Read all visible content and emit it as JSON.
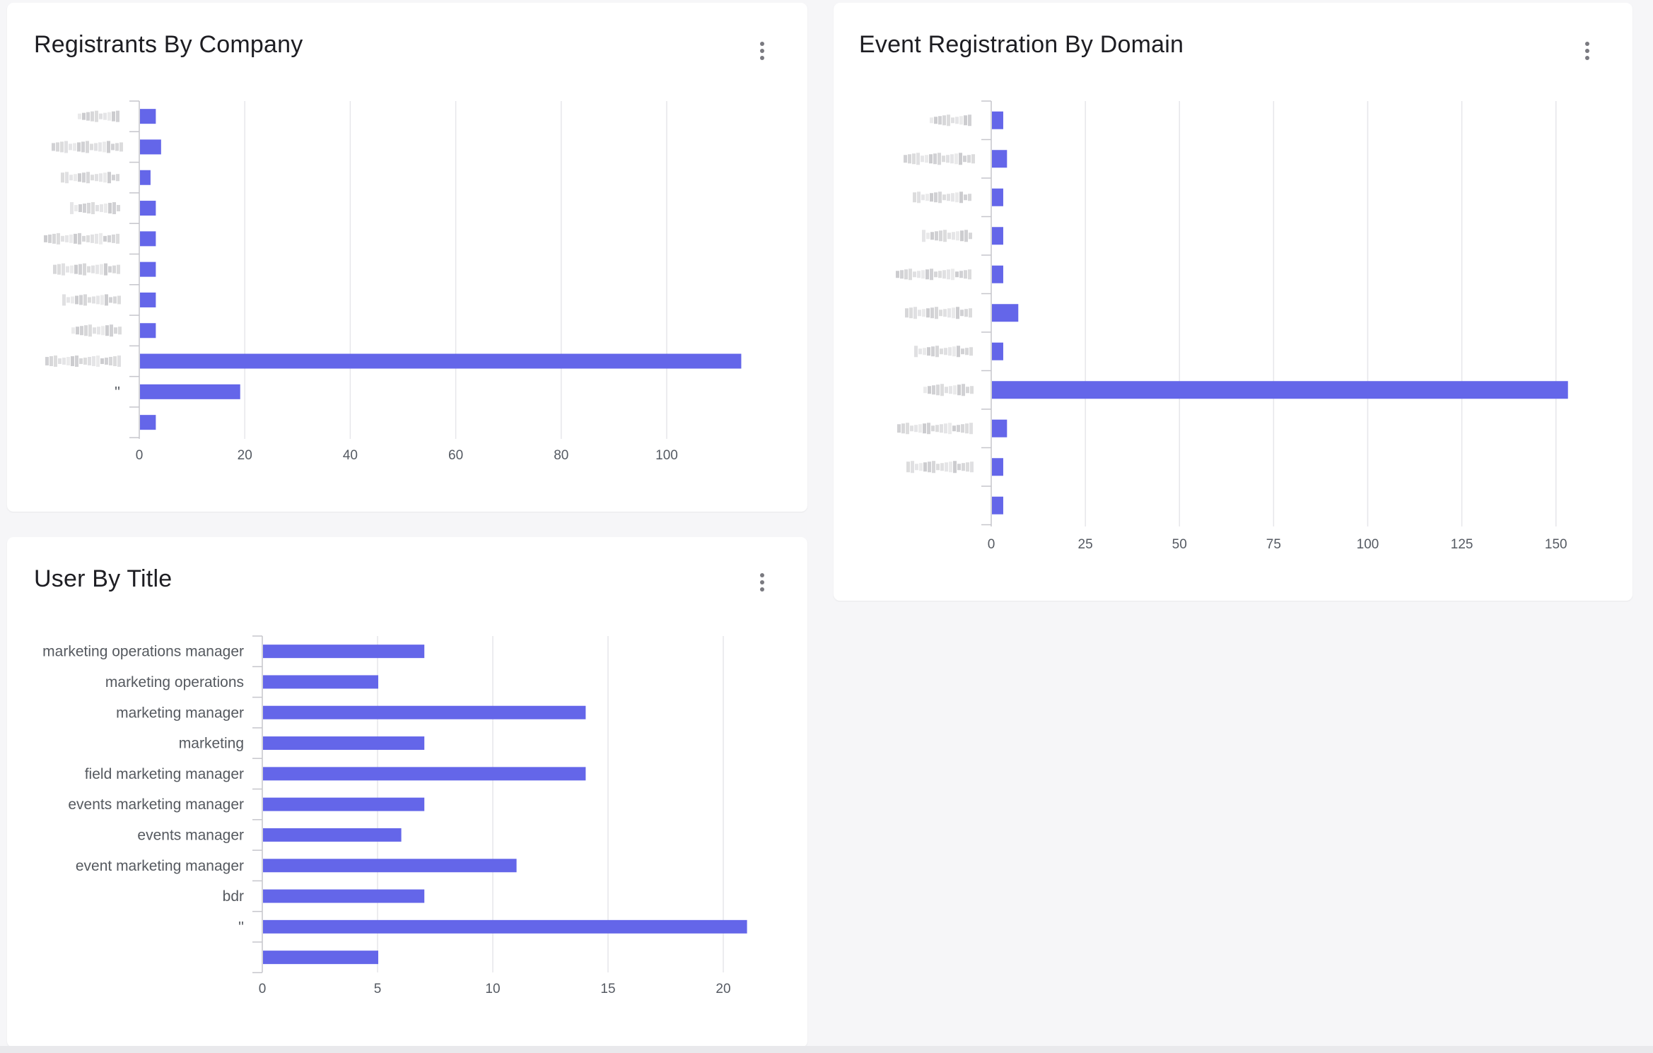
{
  "colors": {
    "bar": "#6466e9",
    "grid": "#e6e6ea",
    "axis": "#c6c6cc"
  },
  "cards": {
    "company": {
      "title": "Registrants By Company",
      "menu_icon": "kebab-menu-icon"
    },
    "domain": {
      "title": "Event Registration By Domain",
      "menu_icon": "kebab-menu-icon"
    },
    "title": {
      "title": "User By Title",
      "menu_icon": "kebab-menu-icon"
    }
  },
  "chart_data": [
    {
      "id": "company",
      "type": "bar",
      "orientation": "horizontal",
      "title": "Registrants By Company",
      "categories": [
        "",
        "",
        "",
        "",
        "",
        "",
        "",
        "",
        "",
        "''",
        ""
      ],
      "category_labels_obscured": true,
      "values": [
        3,
        4,
        2,
        3,
        3,
        3,
        3,
        3,
        114,
        19,
        3
      ],
      "xticks": [
        0,
        20,
        40,
        60,
        80,
        100
      ],
      "xlim": [
        0,
        114
      ],
      "grid": true
    },
    {
      "id": "domain",
      "type": "bar",
      "orientation": "horizontal",
      "title": "Event Registration By Domain",
      "categories": [
        "",
        "",
        "",
        "",
        "",
        "",
        "",
        "",
        "",
        "",
        ""
      ],
      "category_labels_obscured": true,
      "values": [
        3,
        4,
        3,
        3,
        3,
        7,
        3,
        153,
        4,
        3,
        3
      ],
      "xticks": [
        0,
        25,
        50,
        75,
        100,
        125,
        150
      ],
      "xlim": [
        0,
        153
      ],
      "grid": true
    },
    {
      "id": "title",
      "type": "bar",
      "orientation": "horizontal",
      "title": "User By Title",
      "categories": [
        "marketing operations manager",
        "marketing operations",
        "marketing manager",
        "marketing",
        "field marketing manager",
        "events marketing manager",
        "events manager",
        "event marketing manager",
        "bdr",
        "''",
        ""
      ],
      "values": [
        7,
        5,
        14,
        7,
        14,
        7,
        6,
        11,
        7,
        21,
        5
      ],
      "xticks": [
        0,
        5,
        10,
        15,
        20
      ],
      "xlim": [
        0,
        21
      ],
      "grid": true
    }
  ]
}
